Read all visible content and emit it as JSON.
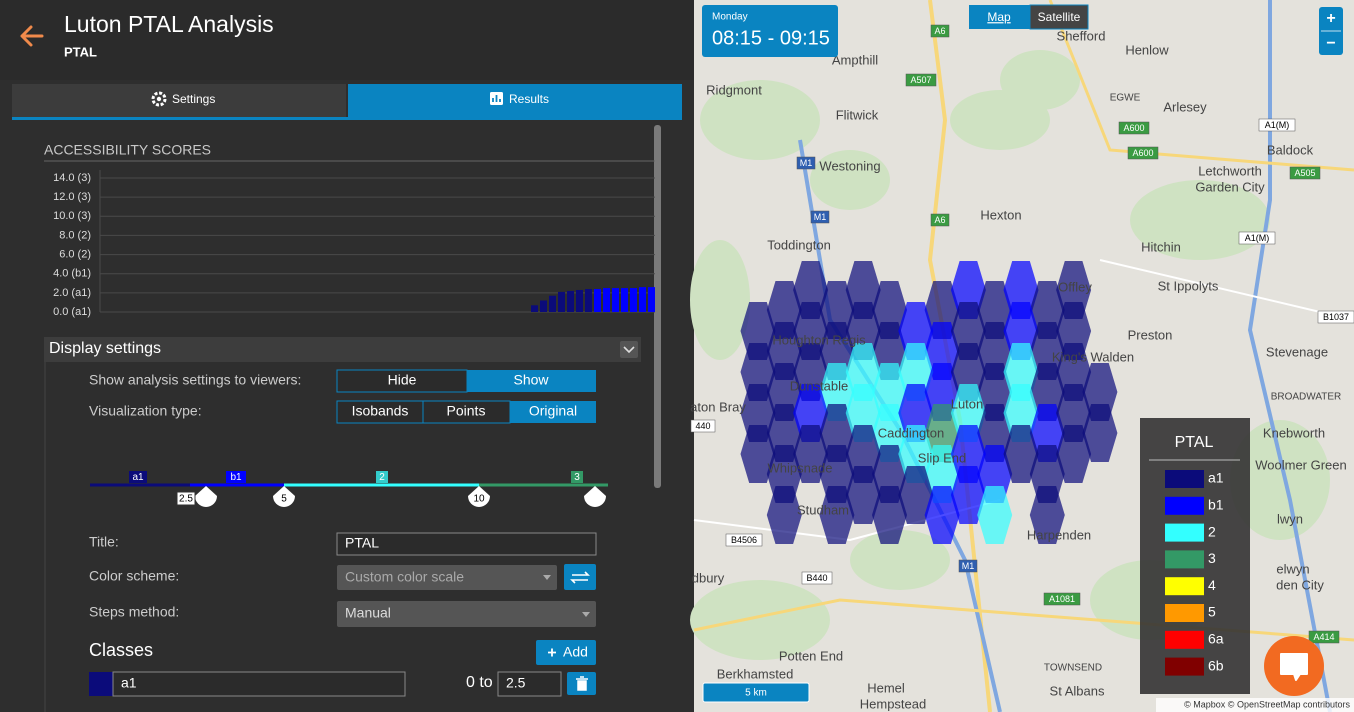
{
  "header": {
    "title": "Luton PTAL Analysis",
    "subtitle": "PTAL"
  },
  "tabs": [
    "Settings",
    "Results"
  ],
  "chart_data": {
    "type": "bar",
    "title": "ACCESSIBILITY SCORES",
    "values": [
      0.7,
      1.2,
      1.7,
      2.1,
      2.2,
      2.3,
      2.4,
      2.4,
      2.5,
      2.5,
      2.5,
      2.5,
      2.6,
      2.6
    ],
    "colors": [
      "#0b0b7a",
      "#0b0b7a",
      "#0b0b7a",
      "#0b0b7a",
      "#0b0b7a",
      "#0b0b7a",
      "#0b0b7a",
      "#0000ff",
      "#0000ff",
      "#0000ff",
      "#0000ff",
      "#0000ff",
      "#0000ff",
      "#0000ff"
    ],
    "ylim": [
      0,
      14
    ],
    "yticks": [
      {
        "value": 14,
        "label": "14.0 (3)"
      },
      {
        "value": 12,
        "label": "12.0 (3)"
      },
      {
        "value": 10,
        "label": "10.0 (3)"
      },
      {
        "value": 8,
        "label": "8.0 (2)"
      },
      {
        "value": 6,
        "label": "6.0 (2)"
      },
      {
        "value": 4,
        "label": "4.0 (b1)"
      },
      {
        "value": 2,
        "label": "2.0 (a1)"
      },
      {
        "value": 0,
        "label": "0.0 (a1)"
      }
    ],
    "grid": true
  },
  "display_settings": {
    "title": "Display settings",
    "show_settings_label": "Show analysis settings to viewers:",
    "show_options": [
      "Hide",
      "Show"
    ],
    "visualization_label": "Visualization type:",
    "visualization_options": [
      "Isobands",
      "Points",
      "Original"
    ],
    "slider": {
      "class_labels": [
        "a1",
        "b1",
        "2",
        "3"
      ],
      "handle_labels": [
        "2.5",
        "5",
        "10"
      ]
    },
    "title_label": "Title:",
    "title_value": "PTAL",
    "color_scheme_label": "Color scheme:",
    "color_scheme_value": "Custom color scale",
    "steps_label": "Steps method:",
    "steps_value": "Manual",
    "classes_title": "Classes",
    "add_button": "Add",
    "classes": [
      {
        "name": "a1",
        "range_prefix": "0 to",
        "to": "2.5"
      }
    ]
  },
  "map": {
    "day": "Monday",
    "time": "08:15 - 09:15",
    "view_options": [
      "Map",
      "Satellite"
    ],
    "zoom": [
      "+",
      "−"
    ],
    "scale": "5 km",
    "attribution": "© Mapbox © OpenStreetMap contributors",
    "places": [
      "Shefford",
      "Henlow",
      "Ampthill",
      "Ridgmont",
      "Flitwick",
      "Arlesey",
      "Baldock",
      "Westoning",
      "Letchworth",
      "Garden City",
      "Hexton",
      "Toddington",
      "Hitchin",
      "St Ippolyts",
      "Offley",
      "Houghton Regis",
      "Preston",
      "Stevenage",
      "Dunstable",
      "King's Walden",
      "BROADWATER",
      "aton Bray",
      "Luton",
      "Caddington",
      "Knebworth",
      "Slip End",
      "Whipsnade",
      "Woolmer Green",
      "Studham",
      "Harpenden",
      "lwyn",
      "elwyn",
      "den City",
      "dbury",
      "Potten End",
      "TOWNSEND",
      "Berkhamsted",
      "Hemel",
      "Hempstead",
      "St Albans",
      "EGWE"
    ],
    "roads": [
      "A6",
      "A507",
      "A600",
      "A1(M)",
      "A505",
      "M1",
      "M1",
      "A6",
      "A1(M)",
      "A600",
      "B1037",
      "B4506",
      "B440",
      "M1",
      "A1081",
      "A414",
      "440"
    ],
    "legend": {
      "title": "PTAL",
      "items": [
        {
          "name": "a1",
          "color": "#0b0b7a"
        },
        {
          "name": "b1",
          "color": "#0000ff"
        },
        {
          "name": "2",
          "color": "#33ffff"
        },
        {
          "name": "3",
          "color": "#339966"
        },
        {
          "name": "4",
          "color": "#ffff00"
        },
        {
          "name": "5",
          "color": "#ff9900"
        },
        {
          "name": "6a",
          "color": "#ff0000"
        },
        {
          "name": "6b",
          "color": "#800000"
        }
      ]
    }
  }
}
